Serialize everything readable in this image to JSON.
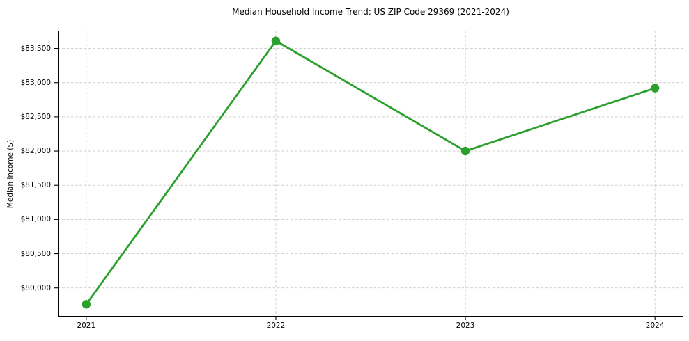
{
  "chart_data": {
    "type": "line",
    "title": "Median Household Income Trend: US ZIP Code 29369 (2021-2024)",
    "xlabel": "",
    "ylabel": "Median Income ($)",
    "x": [
      2021,
      2022,
      2023,
      2024
    ],
    "values": [
      79760,
      83610,
      82000,
      82920
    ],
    "x_ticks": [
      {
        "value": 2021,
        "label": "2021"
      },
      {
        "value": 2022,
        "label": "2022"
      },
      {
        "value": 2023,
        "label": "2023"
      },
      {
        "value": 2024,
        "label": "2024"
      }
    ],
    "y_ticks": [
      {
        "value": 80000,
        "label": "$80,000"
      },
      {
        "value": 80500,
        "label": "$80,500"
      },
      {
        "value": 81000,
        "label": "$81,000"
      },
      {
        "value": 81500,
        "label": "$81,500"
      },
      {
        "value": 82000,
        "label": "$82,000"
      },
      {
        "value": 82500,
        "label": "$82,500"
      },
      {
        "value": 83000,
        "label": "$83,000"
      },
      {
        "value": 83500,
        "label": "$83,500"
      }
    ],
    "xlim": [
      2020.85,
      2024.15
    ],
    "ylim": [
      79580,
      83760
    ],
    "grid": true,
    "grid_style": "dashed",
    "legend": "none",
    "style": {
      "line_color": "#2ca02c",
      "marker": "circle",
      "marker_radius": 6.2,
      "line_width": 2.8,
      "grid_color": "#c9c9c9",
      "frame_color": "#000000",
      "tick_color": "#000000",
      "background": "#ffffff"
    }
  }
}
